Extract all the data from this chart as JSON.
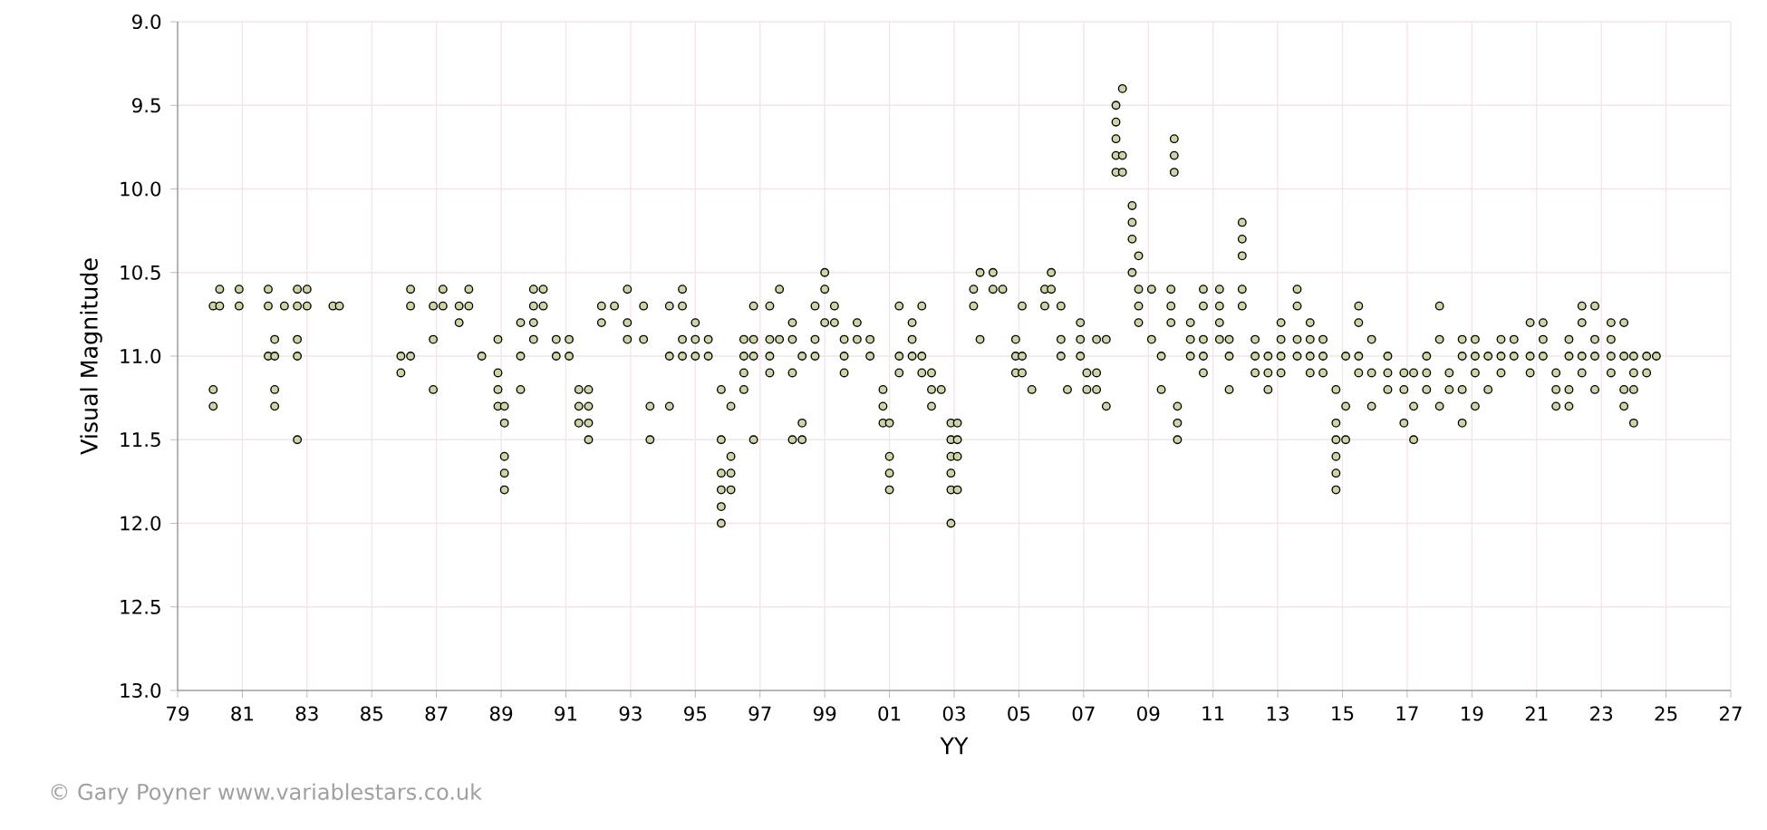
{
  "chart_data": {
    "type": "scatter",
    "xlabel": "YY",
    "ylabel": "Visual Magnitude",
    "annotations": [
      "© Gary Poyner www.variablestars.co.uk"
    ],
    "xlim": [
      1979,
      2027
    ],
    "xticks": [
      {
        "value": 1979,
        "label": "79"
      },
      {
        "value": 1981,
        "label": "81"
      },
      {
        "value": 1983,
        "label": "83"
      },
      {
        "value": 1985,
        "label": "85"
      },
      {
        "value": 1987,
        "label": "87"
      },
      {
        "value": 1989,
        "label": "89"
      },
      {
        "value": 1991,
        "label": "91"
      },
      {
        "value": 1993,
        "label": "93"
      },
      {
        "value": 1995,
        "label": "95"
      },
      {
        "value": 1997,
        "label": "97"
      },
      {
        "value": 1999,
        "label": "99"
      },
      {
        "value": 2001,
        "label": "01"
      },
      {
        "value": 2003,
        "label": "03"
      },
      {
        "value": 2005,
        "label": "05"
      },
      {
        "value": 2007,
        "label": "07"
      },
      {
        "value": 2009,
        "label": "09"
      },
      {
        "value": 2011,
        "label": "11"
      },
      {
        "value": 2013,
        "label": "13"
      },
      {
        "value": 2015,
        "label": "15"
      },
      {
        "value": 2017,
        "label": "17"
      },
      {
        "value": 2019,
        "label": "19"
      },
      {
        "value": 2021,
        "label": "21"
      },
      {
        "value": 2023,
        "label": "23"
      },
      {
        "value": 2025,
        "label": "25"
      },
      {
        "value": 2027,
        "label": "27"
      }
    ],
    "ylim": [
      13.0,
      9.0
    ],
    "yticks": [
      {
        "value": 9.0,
        "label": "9.0"
      },
      {
        "value": 9.5,
        "label": "9.5"
      },
      {
        "value": 10.0,
        "label": "10.0"
      },
      {
        "value": 10.5,
        "label": "10.5"
      },
      {
        "value": 11.0,
        "label": "11.0"
      },
      {
        "value": 11.5,
        "label": "11.5"
      },
      {
        "value": 12.0,
        "label": "12.0"
      },
      {
        "value": 12.5,
        "label": "12.5"
      },
      {
        "value": 13.0,
        "label": "13.0"
      }
    ],
    "grid": true,
    "marker": "circle",
    "color": "#cdd5a3",
    "x": [
      1980.1,
      1980.1,
      1980.1,
      1980.3,
      1980.3,
      1980.9,
      1980.9,
      1981.8,
      1981.8,
      1981.8,
      1982.0,
      1982.0,
      1982.0,
      1982.0,
      1982.3,
      1982.7,
      1982.7,
      1982.7,
      1982.7,
      1982.7,
      1983.0,
      1983.0,
      1983.8,
      1984.0,
      1985.9,
      1985.9,
      1986.2,
      1986.2,
      1986.2,
      1986.9,
      1986.9,
      1986.9,
      1987.2,
      1987.2,
      1987.7,
      1987.7,
      1988.0,
      1988.0,
      1988.4,
      1988.9,
      1988.9,
      1988.9,
      1988.9,
      1989.1,
      1989.1,
      1989.1,
      1989.1,
      1989.1,
      1989.6,
      1989.6,
      1989.6,
      1990.0,
      1990.0,
      1990.0,
      1990.0,
      1990.3,
      1990.3,
      1990.7,
      1990.7,
      1991.1,
      1991.1,
      1991.4,
      1991.4,
      1991.4,
      1991.7,
      1991.7,
      1991.7,
      1991.7,
      1992.1,
      1992.1,
      1992.5,
      1992.9,
      1992.9,
      1992.9,
      1993.4,
      1993.4,
      1993.6,
      1993.6,
      1994.2,
      1994.2,
      1994.2,
      1994.6,
      1994.6,
      1994.6,
      1994.6,
      1995.0,
      1995.0,
      1995.0,
      1995.4,
      1995.4,
      1995.8,
      1995.8,
      1995.8,
      1995.8,
      1995.8,
      1995.8,
      1996.1,
      1996.1,
      1996.1,
      1996.1,
      1996.5,
      1996.5,
      1996.5,
      1996.5,
      1996.8,
      1996.8,
      1996.8,
      1996.8,
      1997.3,
      1997.3,
      1997.3,
      1997.3,
      1997.6,
      1997.6,
      1998.0,
      1998.0,
      1998.0,
      1998.0,
      1998.3,
      1998.3,
      1998.3,
      1998.7,
      1998.7,
      1998.7,
      1999.0,
      1999.0,
      1999.0,
      1999.3,
      1999.3,
      1999.6,
      1999.6,
      1999.6,
      2000.0,
      2000.0,
      2000.4,
      2000.4,
      2000.8,
      2000.8,
      2000.8,
      2001.0,
      2001.0,
      2001.0,
      2001.0,
      2001.3,
      2001.3,
      2001.3,
      2001.7,
      2001.7,
      2001.7,
      2002.0,
      2002.0,
      2002.0,
      2002.3,
      2002.3,
      2002.3,
      2002.6,
      2002.9,
      2002.9,
      2002.9,
      2002.9,
      2002.9,
      2002.9,
      2003.1,
      2003.1,
      2003.1,
      2003.1,
      2003.6,
      2003.6,
      2003.8,
      2003.8,
      2004.2,
      2004.2,
      2004.5,
      2004.9,
      2004.9,
      2004.9,
      2005.1,
      2005.1,
      2005.1,
      2005.4,
      2005.8,
      2005.8,
      2006.0,
      2006.0,
      2006.3,
      2006.3,
      2006.3,
      2006.5,
      2006.9,
      2006.9,
      2006.9,
      2007.1,
      2007.1,
      2007.4,
      2007.4,
      2007.4,
      2007.7,
      2007.7,
      2008.0,
      2008.0,
      2008.0,
      2008.0,
      2008.0,
      2008.2,
      2008.2,
      2008.2,
      2008.5,
      2008.5,
      2008.5,
      2008.5,
      2008.7,
      2008.7,
      2008.7,
      2008.7,
      2009.1,
      2009.1,
      2009.4,
      2009.4,
      2009.7,
      2009.7,
      2009.7,
      2009.8,
      2009.8,
      2009.8,
      2009.9,
      2009.9,
      2009.9,
      2010.3,
      2010.3,
      2010.3,
      2010.7,
      2010.7,
      2010.7,
      2010.7,
      2010.7,
      2011.2,
      2011.2,
      2011.2,
      2011.2,
      2011.5,
      2011.5,
      2011.5,
      2011.9,
      2011.9,
      2011.9,
      2011.9,
      2011.9,
      2012.3,
      2012.3,
      2012.3,
      2012.7,
      2012.7,
      2012.7,
      2013.1,
      2013.1,
      2013.1,
      2013.1,
      2013.6,
      2013.6,
      2013.6,
      2013.6,
      2014.0,
      2014.0,
      2014.0,
      2014.0,
      2014.4,
      2014.4,
      2014.4,
      2014.8,
      2014.8,
      2014.8,
      2014.8,
      2014.8,
      2014.8,
      2015.1,
      2015.1,
      2015.1,
      2015.5,
      2015.5,
      2015.5,
      2015.5,
      2015.9,
      2015.9,
      2015.9,
      2016.4,
      2016.4,
      2016.4,
      2016.9,
      2016.9,
      2016.9,
      2017.2,
      2017.2,
      2017.2,
      2017.6,
      2017.6,
      2017.6,
      2018.0,
      2018.0,
      2018.0,
      2018.3,
      2018.3,
      2018.7,
      2018.7,
      2018.7,
      2018.7,
      2019.1,
      2019.1,
      2019.1,
      2019.1,
      2019.5,
      2019.5,
      2019.9,
      2019.9,
      2019.9,
      2020.3,
      2020.3,
      2020.8,
      2020.8,
      2020.8,
      2021.2,
      2021.2,
      2021.2,
      2021.6,
      2021.6,
      2021.6,
      2022.0,
      2022.0,
      2022.0,
      2022.0,
      2022.4,
      2022.4,
      2022.4,
      2022.4,
      2022.8,
      2022.8,
      2022.8,
      2022.8,
      2023.3,
      2023.3,
      2023.3,
      2023.3,
      2023.7,
      2023.7,
      2023.7,
      2023.7,
      2024.0,
      2024.0,
      2024.0,
      2024.0,
      2024.4,
      2024.4,
      2024.7
    ],
    "values": [
      11.2,
      11.3,
      10.7,
      10.6,
      10.7,
      10.6,
      10.7,
      10.6,
      10.7,
      11.0,
      10.9,
      11.0,
      11.2,
      11.3,
      10.7,
      10.6,
      10.7,
      10.9,
      11.0,
      11.5,
      10.6,
      10.7,
      10.7,
      10.7,
      11.0,
      11.1,
      10.6,
      10.7,
      11.0,
      10.7,
      10.9,
      11.2,
      10.6,
      10.7,
      10.7,
      10.8,
      10.6,
      10.7,
      11.0,
      10.9,
      11.1,
      11.2,
      11.3,
      11.3,
      11.4,
      11.6,
      11.7,
      11.8,
      10.8,
      11.0,
      11.2,
      10.6,
      10.7,
      10.8,
      10.9,
      10.6,
      10.7,
      10.9,
      11.0,
      10.9,
      11.0,
      11.2,
      11.3,
      11.4,
      11.2,
      11.3,
      11.4,
      11.5,
      10.7,
      10.8,
      10.7,
      10.6,
      10.8,
      10.9,
      10.7,
      10.9,
      11.3,
      11.5,
      10.7,
      11.0,
      11.3,
      10.6,
      10.7,
      10.9,
      11.0,
      10.8,
      10.9,
      11.0,
      10.9,
      11.0,
      11.2,
      11.5,
      11.7,
      11.8,
      11.9,
      12.0,
      11.3,
      11.6,
      11.7,
      11.8,
      10.9,
      11.0,
      11.1,
      11.2,
      10.7,
      10.9,
      11.0,
      11.5,
      10.7,
      10.9,
      11.0,
      11.1,
      10.6,
      10.9,
      10.8,
      10.9,
      11.1,
      11.5,
      11.0,
      11.4,
      11.5,
      10.7,
      10.9,
      11.0,
      10.5,
      10.6,
      10.8,
      10.7,
      10.8,
      10.9,
      11.0,
      11.1,
      10.8,
      10.9,
      10.9,
      11.0,
      11.2,
      11.3,
      11.4,
      11.4,
      11.6,
      11.7,
      11.8,
      10.7,
      11.0,
      11.1,
      10.8,
      10.9,
      11.0,
      10.7,
      11.0,
      11.1,
      11.1,
      11.2,
      11.3,
      11.2,
      11.4,
      11.5,
      11.6,
      11.7,
      11.8,
      12.0,
      11.4,
      11.5,
      11.6,
      11.8,
      10.6,
      10.7,
      10.5,
      10.9,
      10.5,
      10.6,
      10.6,
      10.9,
      11.0,
      11.1,
      10.7,
      11.0,
      11.1,
      11.2,
      10.6,
      10.7,
      10.5,
      10.6,
      10.7,
      10.9,
      11.0,
      11.2,
      10.8,
      10.9,
      11.0,
      11.1,
      11.2,
      10.9,
      11.1,
      11.2,
      10.9,
      11.3,
      9.5,
      9.6,
      9.7,
      9.8,
      9.9,
      9.4,
      9.8,
      9.9,
      10.1,
      10.2,
      10.3,
      10.5,
      10.4,
      10.6,
      10.7,
      10.8,
      10.6,
      10.9,
      11.0,
      11.2,
      10.6,
      10.7,
      10.8,
      9.7,
      9.8,
      9.9,
      11.3,
      11.4,
      11.5,
      10.8,
      10.9,
      11.0,
      10.6,
      10.7,
      10.9,
      11.0,
      11.1,
      10.6,
      10.7,
      10.8,
      10.9,
      10.9,
      11.0,
      11.2,
      10.2,
      10.3,
      10.4,
      10.6,
      10.7,
      10.9,
      11.0,
      11.1,
      11.0,
      11.1,
      11.2,
      10.8,
      10.9,
      11.0,
      11.1,
      10.6,
      10.7,
      10.9,
      11.0,
      10.8,
      10.9,
      11.0,
      11.1,
      10.9,
      11.0,
      11.1,
      11.2,
      11.4,
      11.5,
      11.6,
      11.7,
      11.8,
      11.0,
      11.3,
      11.5,
      10.7,
      10.8,
      11.0,
      11.1,
      10.9,
      11.1,
      11.3,
      11.0,
      11.1,
      11.2,
      11.1,
      11.2,
      11.4,
      11.1,
      11.3,
      11.5,
      11.0,
      11.1,
      11.2,
      10.7,
      10.9,
      11.3,
      11.1,
      11.2,
      10.9,
      11.0,
      11.2,
      11.4,
      10.9,
      11.0,
      11.1,
      11.3,
      11.0,
      11.2,
      10.9,
      11.0,
      11.1,
      10.9,
      11.0,
      10.8,
      11.0,
      11.1,
      10.8,
      10.9,
      11.0,
      11.1,
      11.2,
      11.3,
      10.9,
      11.0,
      11.2,
      11.3,
      10.7,
      10.8,
      11.0,
      11.1,
      10.7,
      10.9,
      11.0,
      11.2,
      10.8,
      10.9,
      11.0,
      11.1,
      10.8,
      11.0,
      11.2,
      11.3,
      11.0,
      11.1,
      11.2,
      11.4,
      11.0,
      11.1,
      11.0
    ]
  }
}
